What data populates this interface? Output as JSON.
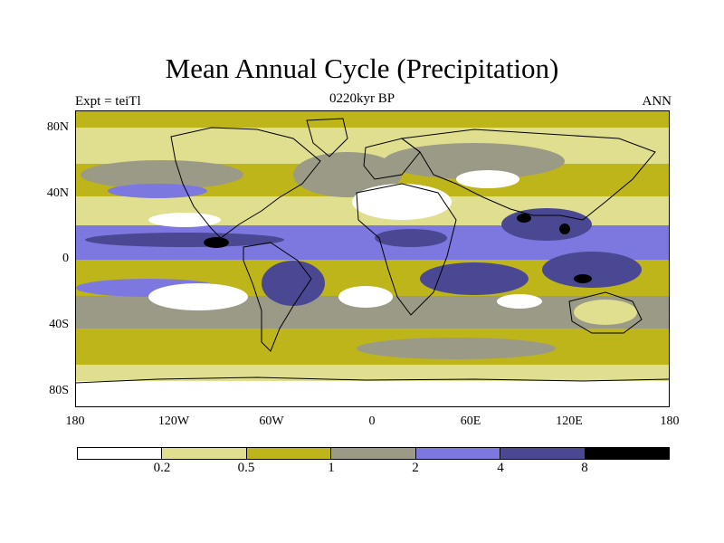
{
  "title": "Mean Annual Cycle (Precipitation)",
  "subtitle": "0220kyr BP",
  "left_label": "Expt = teiTl",
  "right_label": "ANN",
  "colors": {
    "c0": "#ffffff",
    "c1": "#e0df90",
    "c2": "#bdb51a",
    "c3": "#9b9a86",
    "c4": "#7d77e0",
    "c5": "#4a4892",
    "c6": "#000000",
    "coast": "#000000"
  },
  "lat_labels": [
    "80N",
    "40N",
    "0",
    "40S",
    "80S"
  ],
  "lon_labels": [
    "180",
    "120W",
    "60W",
    "0",
    "60E",
    "120E",
    "180"
  ],
  "colorbar": {
    "colors": [
      "#ffffff",
      "#e0df90",
      "#bdb51a",
      "#9b9a86",
      "#7d77e0",
      "#4a4892",
      "#000000"
    ],
    "labels": [
      "0.2",
      "0.5",
      "1",
      "2",
      "4",
      "8"
    ]
  }
}
